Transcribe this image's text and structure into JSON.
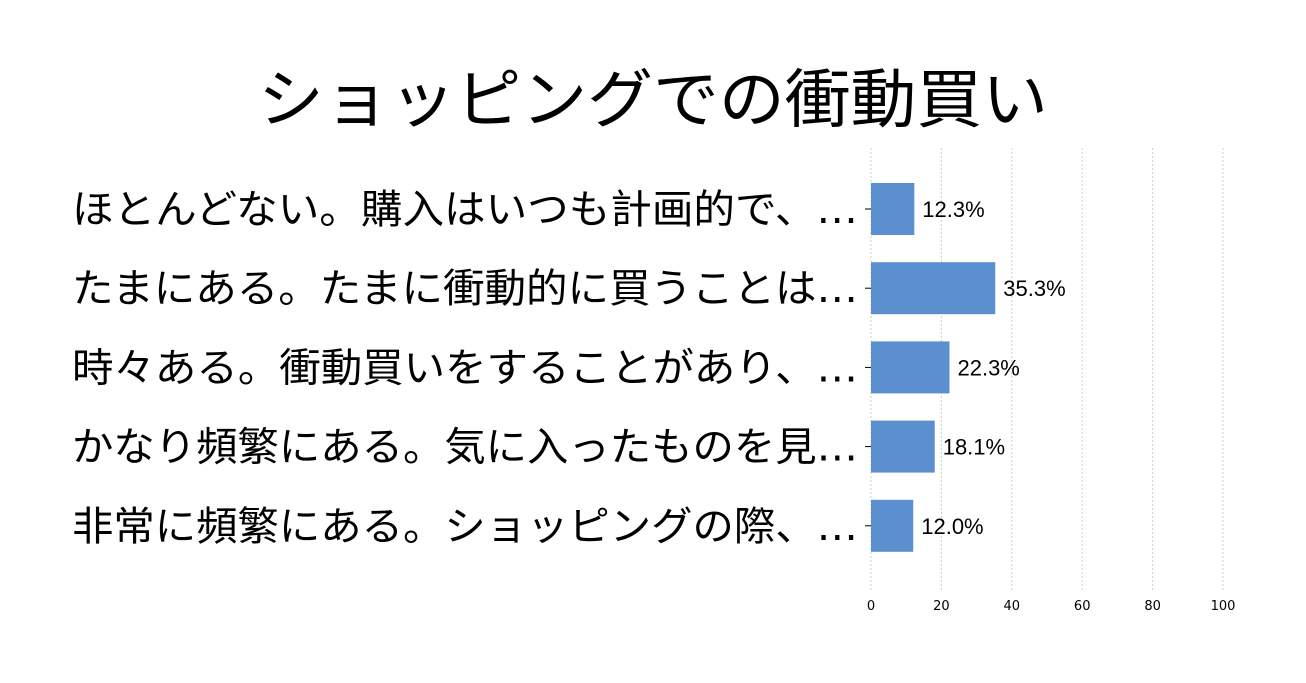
{
  "chart_data": {
    "type": "bar",
    "orientation": "horizontal",
    "title": "ショッピングでの衝動買い",
    "categories": [
      "ほとんどない。購入はいつも計画的で、…",
      "たまにある。たまに衝動的に買うことは…",
      "時々ある。衝動買いをすることがあり、…",
      "かなり頻繁にある。気に入ったものを見…",
      "非常に頻繁にある。ショッピングの際、…"
    ],
    "values": [
      12.3,
      35.3,
      22.3,
      18.1,
      12.0
    ],
    "value_labels": [
      "12.3%",
      "35.3%",
      "22.3%",
      "18.1%",
      "12.0%"
    ],
    "xlim": [
      0,
      100
    ],
    "xticks": [
      "0",
      "20",
      "40",
      "60",
      "80",
      "100"
    ],
    "xlabel": "",
    "ylabel": "",
    "grid": "vertical dashed",
    "bar_color": "#5b8fd0"
  }
}
